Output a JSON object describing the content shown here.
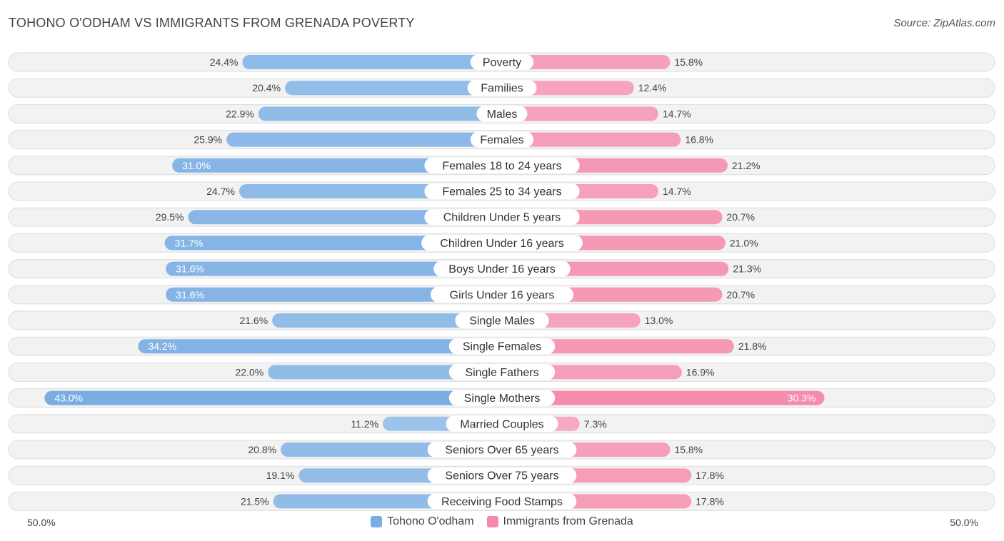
{
  "title": "TOHONO O'ODHAM VS IMMIGRANTS FROM GRENADA POVERTY",
  "source": "Source: ZipAtlas.com",
  "colors": {
    "left_bar": "#7aaee3",
    "right_bar": "#f48bab",
    "row_bg": "#f2f2f2",
    "row_border": "#dddddd"
  },
  "legend": {
    "left_label": "Tohono O'odham",
    "right_label": "Immigrants from Grenada"
  },
  "axis": {
    "left_label": "50.0%",
    "right_label": "50.0%"
  },
  "chart_data": {
    "type": "bar",
    "orientation": "horizontal-diverging",
    "title": "TOHONO O'ODHAM VS IMMIGRANTS FROM GRENADA POVERTY",
    "xlim": [
      0,
      50
    ],
    "categories": [
      "Poverty",
      "Families",
      "Males",
      "Females",
      "Females 18 to 24 years",
      "Females 25 to 34 years",
      "Children Under 5 years",
      "Children Under 16 years",
      "Boys Under 16 years",
      "Girls Under 16 years",
      "Single Males",
      "Single Females",
      "Single Fathers",
      "Single Mothers",
      "Married Couples",
      "Seniors Over 65 years",
      "Seniors Over 75 years",
      "Receiving Food Stamps"
    ],
    "series": [
      {
        "name": "Tohono O'odham",
        "values": [
          24.4,
          20.4,
          22.9,
          25.9,
          31.0,
          24.7,
          29.5,
          31.7,
          31.6,
          31.6,
          21.6,
          34.2,
          22.0,
          43.0,
          11.2,
          20.8,
          19.1,
          21.5
        ],
        "labels": [
          "24.4%",
          "20.4%",
          "22.9%",
          "25.9%",
          "31.0%",
          "24.7%",
          "29.5%",
          "31.7%",
          "31.6%",
          "31.6%",
          "21.6%",
          "34.2%",
          "22.0%",
          "43.0%",
          "11.2%",
          "20.8%",
          "19.1%",
          "21.5%"
        ]
      },
      {
        "name": "Immigrants from Grenada",
        "values": [
          15.8,
          12.4,
          14.7,
          16.8,
          21.2,
          14.7,
          20.7,
          21.0,
          21.3,
          20.7,
          13.0,
          21.8,
          16.9,
          30.3,
          7.3,
          15.8,
          17.8,
          17.8
        ],
        "labels": [
          "15.8%",
          "12.4%",
          "14.7%",
          "16.8%",
          "21.2%",
          "14.7%",
          "20.7%",
          "21.0%",
          "21.3%",
          "20.7%",
          "13.0%",
          "21.8%",
          "16.9%",
          "30.3%",
          "7.3%",
          "15.8%",
          "17.8%",
          "17.8%"
        ]
      }
    ]
  }
}
